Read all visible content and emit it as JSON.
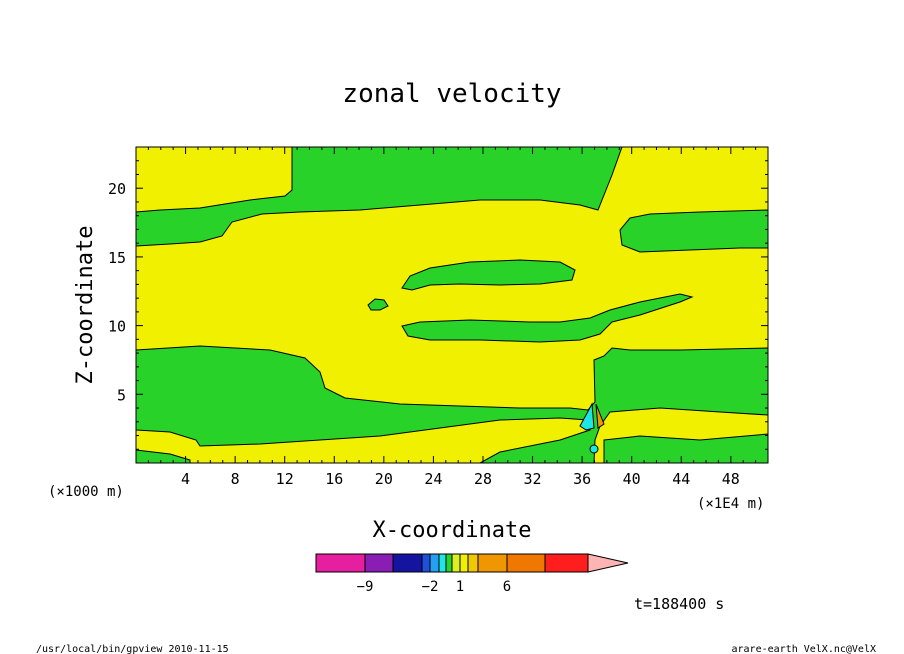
{
  "chart_data": {
    "type": "heatmap",
    "title": "zonal velocity",
    "xlabel": "X-coordinate",
    "ylabel": "Z-coordinate",
    "x_units_left": "(×1000 m)",
    "x_units_right": "(×1E4 m)",
    "xlim": [
      0,
      51
    ],
    "ylim": [
      0,
      23
    ],
    "x_ticks": [
      4,
      8,
      12,
      16,
      20,
      24,
      28,
      32,
      36,
      40,
      44,
      48
    ],
    "y_ticks": [
      5,
      10,
      15,
      20
    ],
    "colorbar": {
      "colors": [
        "#e61ea0",
        "#8a1eb4",
        "#1414a0",
        "#1e50dc",
        "#23a0f0",
        "#1ee6e6",
        "#28d228",
        "#dcf01e",
        "#f0f000",
        "#f0c800",
        "#f09600",
        "#f07800",
        "#ff1e1e",
        "#fa8070",
        "#ffb4b4"
      ],
      "tick_labels": [
        "−9",
        "−2",
        "1",
        "6"
      ]
    },
    "regions_note": "",
    "field_colors": {
      "positive_small": "#f0f000",
      "negative_small": "#28d228",
      "negative_mid": "#1ee6e6",
      "positive_mid": "#f09600"
    },
    "time_label": "t=188400 s"
  },
  "footer": {
    "left": "/usr/local/bin/gpview  2010-11-15",
    "right": "arare-earth_VelX.nc@VelX"
  }
}
